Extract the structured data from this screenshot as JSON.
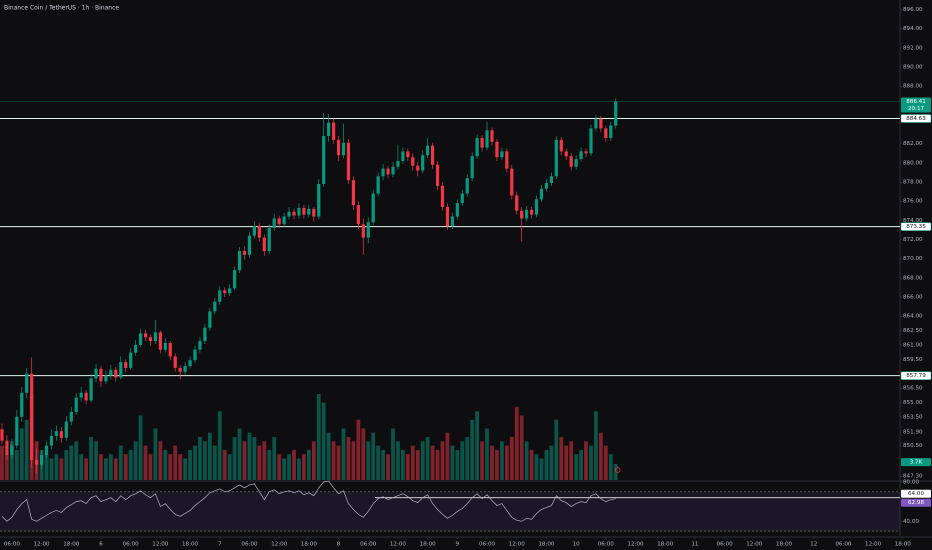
{
  "chart_data": {
    "type": "candlestick",
    "title": "Binance Coin / TetherUS · 1h · Binance",
    "up_color": "#089981",
    "down_color": "#f23645",
    "xlim": [
      -0.4,
      187.9
    ],
    "xticks": [
      {
        "value": 2,
        "label": "06:00"
      },
      {
        "value": 8,
        "label": "12:00"
      },
      {
        "value": 14,
        "label": "18:00"
      },
      {
        "value": 20,
        "label": "6"
      },
      {
        "value": 26,
        "label": "06:00"
      },
      {
        "value": 32,
        "label": "12:00"
      },
      {
        "value": 38,
        "label": "18:00"
      },
      {
        "value": 44,
        "label": "7"
      },
      {
        "value": 50,
        "label": "06:00"
      },
      {
        "value": 56,
        "label": "12:00"
      },
      {
        "value": 62,
        "label": "18:00"
      },
      {
        "value": 68,
        "label": "8"
      },
      {
        "value": 74,
        "label": "06:00"
      },
      {
        "value": 80,
        "label": "12:00"
      },
      {
        "value": 86,
        "label": "18:00"
      },
      {
        "value": 92,
        "label": "9"
      },
      {
        "value": 98,
        "label": "06:00"
      },
      {
        "value": 104,
        "label": "12:00"
      },
      {
        "value": 110,
        "label": "18:00"
      },
      {
        "value": 116,
        "label": "10"
      },
      {
        "value": 122,
        "label": "06:00"
      },
      {
        "value": 128,
        "label": "12:00"
      },
      {
        "value": 134,
        "label": "18:00"
      },
      {
        "value": 140,
        "label": "11"
      },
      {
        "value": 146,
        "label": "06:00"
      },
      {
        "value": 152,
        "label": "12:00"
      },
      {
        "value": 158,
        "label": "18:00"
      },
      {
        "value": 164,
        "label": "12"
      },
      {
        "value": 170,
        "label": "06:00"
      },
      {
        "value": 176,
        "label": "12:00"
      },
      {
        "value": 182,
        "label": "18:00"
      }
    ],
    "ylim": [
      846.9,
      897
    ],
    "yticks": [
      {
        "value": 896,
        "label": "896.00"
      },
      {
        "value": 894,
        "label": "894.00"
      },
      {
        "value": 892,
        "label": "892.00"
      },
      {
        "value": 890,
        "label": "890.00"
      },
      {
        "value": 888,
        "label": "888.00"
      },
      {
        "value": 882,
        "label": "882.00"
      },
      {
        "value": 880,
        "label": "880.00"
      },
      {
        "value": 878,
        "label": "878.00"
      },
      {
        "value": 876,
        "label": "876.00"
      },
      {
        "value": 874,
        "label": "874.00"
      },
      {
        "value": 872,
        "label": "872.00"
      },
      {
        "value": 870,
        "label": "870.00"
      },
      {
        "value": 868,
        "label": "868.00"
      },
      {
        "value": 866,
        "label": "866.00"
      },
      {
        "value": 864,
        "label": "864.00"
      },
      {
        "value": 862.5,
        "label": "862.50"
      },
      {
        "value": 861,
        "label": "861.00"
      },
      {
        "value": 859.5,
        "label": "859.50"
      },
      {
        "value": 856.5,
        "label": "856.50"
      },
      {
        "value": 855,
        "label": "855.00"
      },
      {
        "value": 853.5,
        "label": "853.50"
      },
      {
        "value": 851.9,
        "label": "851.90"
      },
      {
        "value": 850.5,
        "label": "850.50"
      },
      {
        "value": 847.3,
        "label": "847.30"
      }
    ],
    "levels": [
      884.63,
      873.35,
      857.79
    ],
    "countdown": "20:17",
    "volume_badge": "3.7K",
    "ohlc": [
      [
        852.2,
        852.8,
        850.6,
        851
      ],
      [
        851,
        851.6,
        849,
        849.5
      ],
      [
        849.5,
        851.2,
        849.1,
        850.5
      ],
      [
        850.5,
        854.2,
        850.2,
        853.5
      ],
      [
        853.5,
        856.6,
        853,
        856
      ],
      [
        856,
        858.6,
        855.4,
        858
      ],
      [
        858,
        859.7,
        848.2,
        849
      ],
      [
        849,
        850.2,
        847.6,
        848.5
      ],
      [
        848.5,
        850,
        848,
        849.5
      ],
      [
        849.5,
        851,
        849.2,
        850.5
      ],
      [
        850.5,
        852.2,
        850.1,
        851.5
      ],
      [
        851.5,
        852.6,
        851,
        852
      ],
      [
        852,
        852.4,
        850.8,
        851.3
      ],
      [
        851.3,
        853.6,
        851,
        853
      ],
      [
        853,
        854.5,
        852.6,
        854
      ],
      [
        854,
        856,
        853.7,
        855.5
      ],
      [
        855.5,
        856.6,
        855.1,
        856
      ],
      [
        856,
        856.3,
        854.8,
        855.2
      ],
      [
        855.2,
        858,
        855,
        857.5
      ],
      [
        857.5,
        859,
        857.1,
        858.5
      ],
      [
        858.5,
        858.8,
        856.6,
        857.2
      ],
      [
        857.2,
        858.3,
        856.9,
        857.8
      ],
      [
        857.8,
        858.9,
        857.4,
        858.4
      ],
      [
        858.4,
        858.7,
        857.2,
        857.6
      ],
      [
        857.6,
        859.8,
        857.4,
        859.2
      ],
      [
        859.2,
        859.5,
        858.2,
        858.6
      ],
      [
        858.6,
        860.7,
        858.4,
        860.2
      ],
      [
        860.2,
        861.5,
        859.9,
        861
      ],
      [
        861,
        862.7,
        860.8,
        862.2
      ],
      [
        862.2,
        862.6,
        861.4,
        861.8
      ],
      [
        861.8,
        862.1,
        860.9,
        861.4
      ],
      [
        861.4,
        863.6,
        861.1,
        862.3
      ],
      [
        862.3,
        862.5,
        860.1,
        860.5
      ],
      [
        860.5,
        861.7,
        860.2,
        861.2
      ],
      [
        861.2,
        861.4,
        859.4,
        859.8
      ],
      [
        859.8,
        860.1,
        858.2,
        858.6
      ],
      [
        858.6,
        858.9,
        857.4,
        858.2
      ],
      [
        858.2,
        859.2,
        857.9,
        858.8
      ],
      [
        858.8,
        859.8,
        858.5,
        859.4
      ],
      [
        859.4,
        860.9,
        859.1,
        860.5
      ],
      [
        860.5,
        861.8,
        860.2,
        861.4
      ],
      [
        861.4,
        863.2,
        861.1,
        862.8
      ],
      [
        862.8,
        864.9,
        862.5,
        864.5
      ],
      [
        864.5,
        865.9,
        864.2,
        865.5
      ],
      [
        865.5,
        867.1,
        865.2,
        866.7
      ],
      [
        866.7,
        867,
        866,
        866.4
      ],
      [
        866.4,
        867.3,
        866.1,
        866.9
      ],
      [
        866.9,
        869.2,
        866.7,
        868.8
      ],
      [
        868.8,
        871.2,
        868.5,
        870.8
      ],
      [
        870.8,
        871.3,
        869.9,
        870.4
      ],
      [
        870.4,
        872.8,
        870.1,
        872.4
      ],
      [
        872.4,
        873.9,
        872.1,
        873.4
      ],
      [
        873.4,
        873.7,
        871.8,
        872.2
      ],
      [
        872.2,
        872.5,
        870.3,
        870.8
      ],
      [
        870.8,
        873.6,
        870.5,
        873.2
      ],
      [
        873.2,
        874.7,
        872.9,
        874.2
      ],
      [
        874.2,
        874.5,
        873.2,
        873.6
      ],
      [
        873.6,
        874.8,
        873.3,
        874.4
      ],
      [
        874.4,
        875.4,
        874.1,
        874.9
      ],
      [
        874.9,
        875.2,
        874.1,
        874.5
      ],
      [
        874.5,
        875.8,
        874.2,
        875.3
      ],
      [
        875.3,
        875.6,
        874.2,
        874.6
      ],
      [
        874.6,
        875.6,
        874.3,
        875.2
      ],
      [
        875.2,
        875.4,
        873.9,
        874.4
      ],
      [
        874.4,
        878.3,
        874.1,
        877.8
      ],
      [
        877.8,
        885.2,
        877.5,
        882.8
      ],
      [
        882.8,
        885.1,
        882.2,
        884.2
      ],
      [
        884.2,
        884.6,
        882,
        882.4
      ],
      [
        882.4,
        882.8,
        880.2,
        880.8
      ],
      [
        880.8,
        884.1,
        880.5,
        882.1
      ],
      [
        882.1,
        882.5,
        877.8,
        878.2
      ],
      [
        878.2,
        878.6,
        875.1,
        875.6
      ],
      [
        875.6,
        876,
        873.1,
        873.6
      ],
      [
        873.6,
        874.2,
        870.4,
        872.2
      ],
      [
        872.2,
        874.3,
        871.6,
        873.8
      ],
      [
        873.8,
        877.2,
        873.5,
        876.8
      ],
      [
        876.8,
        879,
        876.5,
        878.6
      ],
      [
        878.6,
        879.9,
        878.2,
        879.4
      ],
      [
        879.4,
        879.7,
        878.4,
        878.8
      ],
      [
        878.8,
        880.1,
        878.5,
        879.6
      ],
      [
        879.6,
        881.9,
        879.3,
        880.2
      ],
      [
        880.2,
        881.6,
        879.9,
        881.2
      ],
      [
        881.2,
        881.5,
        880.2,
        880.6
      ],
      [
        880.6,
        881,
        879.2,
        879.7
      ],
      [
        879.7,
        880.1,
        878.6,
        879.2
      ],
      [
        879.2,
        881.3,
        878.9,
        880.8
      ],
      [
        880.8,
        882.6,
        880.5,
        881.8
      ],
      [
        881.8,
        882.1,
        879.4,
        879.8
      ],
      [
        879.8,
        880.2,
        877.2,
        877.6
      ],
      [
        877.6,
        878,
        875,
        875.4
      ],
      [
        875.4,
        875.8,
        873,
        873.4
      ],
      [
        873.4,
        874.8,
        873.1,
        874.4
      ],
      [
        874.4,
        876.2,
        874.1,
        875.8
      ],
      [
        875.8,
        877.2,
        875.5,
        876.8
      ],
      [
        876.8,
        878.8,
        876.5,
        878.4
      ],
      [
        878.4,
        881.1,
        878.1,
        880.7
      ],
      [
        880.7,
        883,
        880.4,
        882.6
      ],
      [
        882.6,
        882.9,
        881.2,
        881.6
      ],
      [
        881.6,
        884.3,
        881.3,
        883.4
      ],
      [
        883.4,
        883.7,
        881.8,
        882.2
      ],
      [
        882.2,
        882.5,
        880.2,
        880.6
      ],
      [
        880.6,
        881.6,
        880.3,
        881.2
      ],
      [
        881.2,
        881.5,
        879,
        879.4
      ],
      [
        879.4,
        879.8,
        876.2,
        876.6
      ],
      [
        876.6,
        877,
        874.6,
        875
      ],
      [
        875,
        875.4,
        871.8,
        874.2
      ],
      [
        874.2,
        875.5,
        873.9,
        875.1
      ],
      [
        875.1,
        875.4,
        874.2,
        874.6
      ],
      [
        874.6,
        876.6,
        874.3,
        876.2
      ],
      [
        876.2,
        877.7,
        875.9,
        877.3
      ],
      [
        877.3,
        878.3,
        877,
        877.9
      ],
      [
        877.9,
        879,
        877.6,
        878.6
      ],
      [
        878.6,
        882.8,
        878.3,
        882.4
      ],
      [
        882.4,
        882.7,
        880.8,
        881.2
      ],
      [
        881.2,
        881.5,
        880.3,
        880.7
      ],
      [
        880.7,
        881,
        879.2,
        879.6
      ],
      [
        879.6,
        880.8,
        879.3,
        880.4
      ],
      [
        880.4,
        881.6,
        880.1,
        881.2
      ],
      [
        881.2,
        881.5,
        880.6,
        881
      ],
      [
        881,
        884,
        880.7,
        883.6
      ],
      [
        883.6,
        885,
        883.3,
        884.6
      ],
      [
        884.6,
        884.9,
        883.2,
        883.6
      ],
      [
        883.6,
        883.9,
        882.2,
        882.6
      ],
      [
        882.6,
        884.3,
        882.3,
        883.9
      ],
      [
        883.9,
        886.7,
        883.6,
        886.41
      ]
    ],
    "volume": [
      8,
      6,
      9,
      7,
      12,
      14,
      20,
      9,
      7,
      6,
      5,
      6,
      5,
      7,
      8,
      9,
      6,
      5,
      10,
      9,
      6,
      5,
      6,
      5,
      8,
      6,
      7,
      9,
      15,
      8,
      6,
      12,
      9,
      7,
      6,
      8,
      6,
      5,
      7,
      8,
      10,
      9,
      11,
      8,
      16,
      7,
      6,
      10,
      12,
      9,
      11,
      10,
      8,
      9,
      7,
      10,
      6,
      5,
      6,
      7,
      5,
      6,
      7,
      9,
      20,
      18,
      11,
      9,
      8,
      12,
      10,
      9,
      14,
      12,
      9,
      11,
      8,
      7,
      6,
      12,
      9,
      7,
      6,
      8,
      7,
      9,
      10,
      8,
      7,
      9,
      11,
      8,
      7,
      9,
      10,
      14,
      16,
      9,
      12,
      8,
      7,
      9,
      8,
      10,
      17,
      15,
      9,
      7,
      6,
      5,
      7,
      8,
      14,
      10,
      8,
      9,
      6,
      7,
      9,
      8,
      16,
      11,
      8,
      6,
      3.7
    ],
    "rsi": [
      45,
      40,
      44,
      52,
      58,
      62,
      42,
      40,
      43,
      46,
      49,
      51,
      49,
      54,
      57,
      60,
      61,
      58,
      64,
      66,
      60,
      62,
      64,
      60,
      66,
      62,
      66,
      68,
      71,
      67,
      64,
      68,
      55,
      58,
      52,
      47,
      45,
      48,
      51,
      56,
      60,
      64,
      69,
      71,
      73,
      70,
      71,
      74,
      77,
      74,
      77,
      78,
      70,
      62,
      70,
      72,
      68,
      70,
      71,
      69,
      71,
      67,
      69,
      66,
      74,
      80,
      81,
      74,
      68,
      71,
      58,
      52,
      47,
      44,
      50,
      58,
      63,
      65,
      62,
      64,
      66,
      68,
      65,
      61,
      59,
      64,
      67,
      58,
      52,
      47,
      43,
      46,
      50,
      53,
      58,
      64,
      68,
      63,
      67,
      61,
      56,
      58,
      51,
      44,
      41,
      40,
      43,
      42,
      48,
      52,
      54,
      56,
      66,
      61,
      59,
      55,
      58,
      60,
      59,
      66,
      68,
      63,
      60,
      62,
      62.98
    ],
    "rsi_color": "#b7b3c6",
    "rsi_ylim": [
      24,
      82
    ],
    "rsi_yticks": [
      {
        "value": 80,
        "label": "80.00"
      },
      {
        "value": 40,
        "label": "40.00"
      }
    ],
    "rsi_levels": [
      70,
      30
    ],
    "rsi_line_level": {
      "value": 64,
      "label": "64.00"
    }
  }
}
